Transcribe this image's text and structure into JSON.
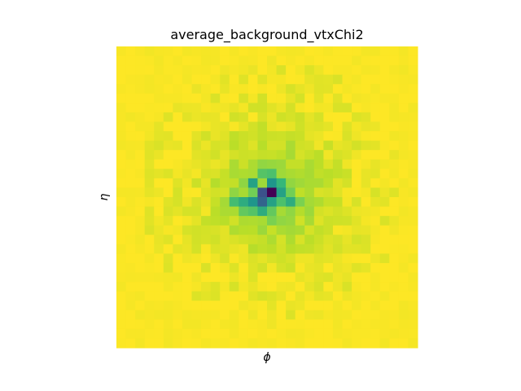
{
  "chart_data": {
    "type": "heatmap",
    "title": "average_background_vtxChi2",
    "xlabel": "ϕ",
    "ylabel": "η",
    "grid": false,
    "colormap": "viridis",
    "nx": 32,
    "ny": 32,
    "peak": {
      "col": 16,
      "row": 15,
      "value": 1.0
    },
    "high_cells": [
      {
        "col": 15,
        "row": 15,
        "value": 0.85
      },
      {
        "col": 15,
        "row": 16,
        "value": 0.8
      },
      {
        "col": 16,
        "row": 14,
        "value": 0.6
      },
      {
        "col": 14,
        "row": 14,
        "value": 0.55
      },
      {
        "col": 14,
        "row": 16,
        "value": 0.6
      },
      {
        "col": 16,
        "row": 16,
        "value": 0.55
      },
      {
        "col": 17,
        "row": 15,
        "value": 0.55
      },
      {
        "col": 13,
        "row": 16,
        "value": 0.5
      },
      {
        "col": 15,
        "row": 17,
        "value": 0.5
      },
      {
        "col": 18,
        "row": 16,
        "value": 0.5
      },
      {
        "col": 17,
        "row": 14,
        "value": 0.45
      },
      {
        "col": 12,
        "row": 16,
        "value": 0.42
      },
      {
        "col": 16,
        "row": 13,
        "value": 0.4
      },
      {
        "col": 14,
        "row": 17,
        "value": 0.38
      },
      {
        "col": 17,
        "row": 16,
        "value": 0.4
      },
      {
        "col": 15,
        "row": 13,
        "value": 0.38
      },
      {
        "col": 13,
        "row": 17,
        "value": 0.35
      },
      {
        "col": 16,
        "row": 17,
        "value": 0.35
      },
      {
        "col": 18,
        "row": 15,
        "value": 0.32
      },
      {
        "col": 19,
        "row": 16,
        "value": 0.3
      },
      {
        "col": 14,
        "row": 15,
        "value": 0.32
      },
      {
        "col": 16,
        "row": 18,
        "value": 0.3
      },
      {
        "col": 12,
        "row": 15,
        "value": 0.25
      },
      {
        "col": 13,
        "row": 14,
        "value": 0.25
      },
      {
        "col": 17,
        "row": 12,
        "value": 0.22
      },
      {
        "col": 11,
        "row": 16,
        "value": 0.2
      },
      {
        "col": 20,
        "row": 17,
        "value": 0.22
      },
      {
        "col": 15,
        "row": 19,
        "value": 0.22
      }
    ]
  }
}
